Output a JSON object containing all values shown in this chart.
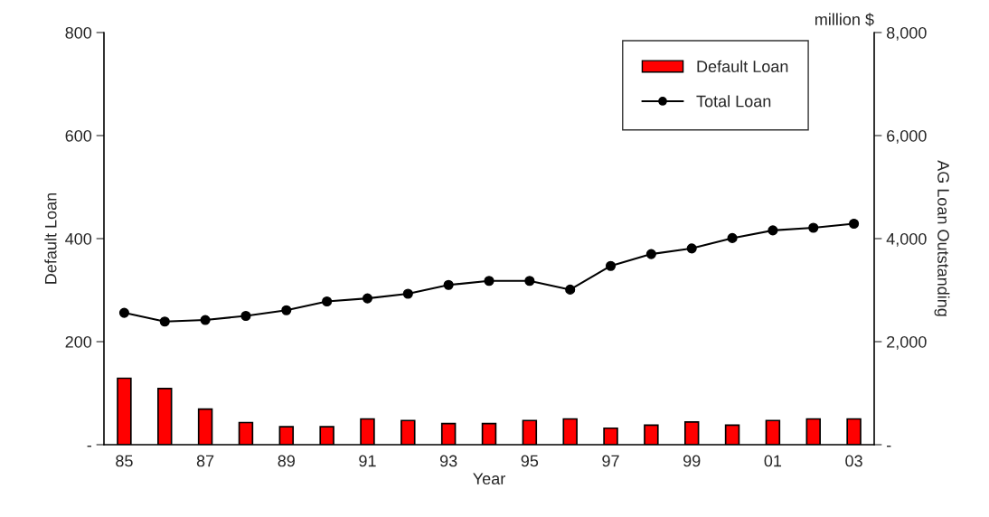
{
  "chart_data": {
    "type": "bar",
    "xlabel": "Year",
    "ylabel": "Default Loan",
    "y2label": "AG Loan Outstanding",
    "annotations": [
      "million $"
    ],
    "categories": [
      "85",
      null,
      "87",
      null,
      "89",
      null,
      "91",
      null,
      "93",
      null,
      "95",
      null,
      "97",
      null,
      "99",
      null,
      "01",
      null,
      "03"
    ],
    "series": [
      {
        "name": "Default Loan",
        "color": "#ff0000",
        "values": [
          129,
          109,
          69,
          43,
          35,
          35,
          50,
          47,
          41,
          41,
          47,
          50,
          32,
          38,
          44,
          38,
          47,
          50,
          50
        ]
      },
      {
        "name": "Total Loan",
        "type": "line",
        "axis": "y2",
        "color": "#000000",
        "marker": "circle",
        "values": [
          2560,
          2390,
          2420,
          2500,
          2610,
          2780,
          2840,
          2930,
          3100,
          3180,
          3180,
          3010,
          3470,
          3700,
          3810,
          4010,
          4160,
          4210,
          4290
        ]
      }
    ],
    "ylim": [
      0,
      800
    ],
    "yticks": [
      {
        "value": 0,
        "label": "-"
      },
      200,
      400,
      600,
      800
    ],
    "y2lim": [
      0,
      8000
    ],
    "y2ticks": [
      {
        "value": 0,
        "label": "-"
      },
      {
        "value": 2000,
        "label": "2,000"
      },
      {
        "value": 4000,
        "label": "4,000"
      },
      {
        "value": 6000,
        "label": "6,000"
      },
      {
        "value": 8000,
        "label": "8,000"
      }
    ],
    "legend": "top right",
    "grid": false
  }
}
